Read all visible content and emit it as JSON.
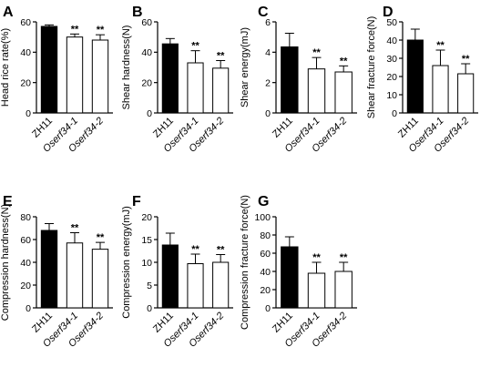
{
  "figure": {
    "categories": [
      "ZH11",
      "Oserf34-1",
      "Oserf34-2"
    ],
    "category_styles": [
      "normal",
      "italic",
      "italic"
    ],
    "bar_fills": [
      "#000000",
      "#ffffff",
      "#ffffff"
    ]
  },
  "chart_data": [
    {
      "type": "bar",
      "letter": "A",
      "title": "",
      "xlabel": "",
      "ylabel": "Head rice rate(%)",
      "ylim": [
        0,
        60
      ],
      "yticks": [
        0,
        20,
        40,
        60
      ],
      "categories": [
        "ZH11",
        "Oserf34-1",
        "Oserf34-2"
      ],
      "values": [
        57,
        50,
        48
      ],
      "errors": [
        1,
        2,
        3.5
      ],
      "significance": [
        "",
        "**",
        "**"
      ],
      "grid": false,
      "legend": "none"
    },
    {
      "type": "bar",
      "letter": "B",
      "title": "",
      "xlabel": "",
      "ylabel": "Shear hardness(N)",
      "ylim": [
        0,
        60
      ],
      "yticks": [
        0,
        20,
        40,
        60
      ],
      "categories": [
        "ZH11",
        "Oserf34-1",
        "Oserf34-2"
      ],
      "values": [
        45.5,
        33,
        29.5
      ],
      "errors": [
        3.5,
        8,
        5
      ],
      "significance": [
        "",
        "**",
        "**"
      ],
      "grid": false,
      "legend": "none"
    },
    {
      "type": "bar",
      "letter": "C",
      "title": "",
      "xlabel": "",
      "ylabel": "Shear energy(mJ)",
      "ylim": [
        0,
        6
      ],
      "yticks": [
        0,
        2,
        4,
        6
      ],
      "categories": [
        "ZH11",
        "Oserf34-1",
        "Oserf34-2"
      ],
      "values": [
        4.35,
        2.9,
        2.7
      ],
      "errors": [
        0.9,
        0.75,
        0.4
      ],
      "significance": [
        "",
        "**",
        "**"
      ],
      "grid": false,
      "legend": "none"
    },
    {
      "type": "bar",
      "letter": "D",
      "title": "",
      "xlabel": "",
      "ylabel": "Shear fracture force(N)",
      "ylim": [
        0,
        50
      ],
      "yticks": [
        0,
        10,
        20,
        30,
        40,
        50
      ],
      "categories": [
        "ZH11",
        "Oserf34-1",
        "Oserf34-2"
      ],
      "values": [
        40,
        26,
        21.5
      ],
      "errors": [
        6,
        8.5,
        5.5
      ],
      "significance": [
        "",
        "**",
        "**"
      ],
      "grid": false,
      "legend": "none"
    },
    {
      "type": "bar",
      "letter": "E",
      "title": "",
      "xlabel": "",
      "ylabel": "Compression hardness(N)",
      "ylim": [
        0,
        80
      ],
      "yticks": [
        0,
        20,
        40,
        60,
        80
      ],
      "categories": [
        "ZH11",
        "Oserf34-1",
        "Oserf34-2"
      ],
      "values": [
        68,
        57,
        51.5
      ],
      "errors": [
        6,
        9,
        6
      ],
      "significance": [
        "",
        "**",
        "**"
      ],
      "grid": false,
      "legend": "none"
    },
    {
      "type": "bar",
      "letter": "F",
      "title": "",
      "xlabel": "",
      "ylabel": "Compression energy(mJ)",
      "ylim": [
        0,
        20
      ],
      "yticks": [
        0,
        5,
        10,
        15,
        20
      ],
      "categories": [
        "ZH11",
        "Oserf34-1",
        "Oserf34-2"
      ],
      "values": [
        13.8,
        9.7,
        10
      ],
      "errors": [
        2.6,
        2.1,
        1.7
      ],
      "significance": [
        "",
        "**",
        "**"
      ],
      "grid": false,
      "legend": "none"
    },
    {
      "type": "bar",
      "letter": "G",
      "title": "",
      "xlabel": "",
      "ylabel": "Compression fracture force(N)",
      "ylim": [
        0,
        100
      ],
      "yticks": [
        0,
        20,
        40,
        60,
        80,
        100
      ],
      "categories": [
        "ZH11",
        "Oserf34-1",
        "Oserf34-2"
      ],
      "values": [
        67,
        38,
        40
      ],
      "errors": [
        11,
        12,
        10
      ],
      "significance": [
        "",
        "**",
        "**"
      ],
      "grid": false,
      "legend": "none"
    }
  ]
}
